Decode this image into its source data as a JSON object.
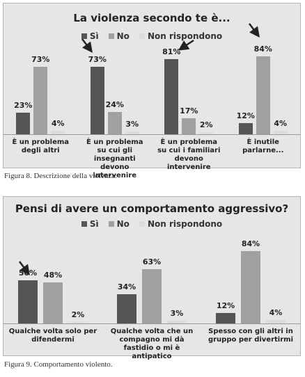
{
  "chart_data": [
    {
      "type": "bar",
      "title": "La violenza secondo te è...",
      "legend": "top",
      "categories": [
        "È un problema degli altri",
        "È un problema su cui gli insegnanti devono intervenire",
        "È un problema su cui i familiari devono intervenire",
        "È inutile parlarne..."
      ],
      "series": [
        {
          "name": "Sì",
          "color": "#555555",
          "values": [
            23,
            73,
            81,
            12
          ],
          "value_labels": [
            "23%",
            "73%",
            "81%",
            "12%"
          ]
        },
        {
          "name": "No",
          "color": "#a0a0a0",
          "values": [
            73,
            24,
            17,
            84
          ],
          "value_labels": [
            "73%",
            "24%",
            "17%",
            "84%"
          ]
        },
        {
          "name": "Non rispondono",
          "color": "#dcdcdc",
          "values": [
            4,
            3,
            2,
            4
          ],
          "value_labels": [
            "4%",
            "3%",
            "2%",
            "4%"
          ]
        }
      ]
    },
    {
      "type": "bar",
      "title": "Pensi di avere un comportamento aggressivo?",
      "legend": "top",
      "categories": [
        "Qualche volta solo per difendermi",
        "Qualche volta che un compagno mi dà fastidio o mi è antipatico",
        "Spesso con gli altri in gruppo per divertirmi"
      ],
      "series": [
        {
          "name": "Sì",
          "color": "#555555",
          "values": [
            50,
            34,
            12
          ],
          "value_labels": [
            "50%",
            "34%",
            "12%"
          ]
        },
        {
          "name": "No",
          "color": "#a0a0a0",
          "values": [
            48,
            63,
            84
          ],
          "value_labels": [
            "48%",
            "63%",
            "84%"
          ]
        },
        {
          "name": "Non rispondono",
          "color": "#dcdcdc",
          "values": [
            2,
            3,
            4
          ],
          "value_labels": [
            "2%",
            "3%",
            "4%"
          ]
        }
      ]
    }
  ],
  "captions": [
    "Figura 8. Descrizione della violenza.",
    "Figura 9. Comportamento violento."
  ]
}
